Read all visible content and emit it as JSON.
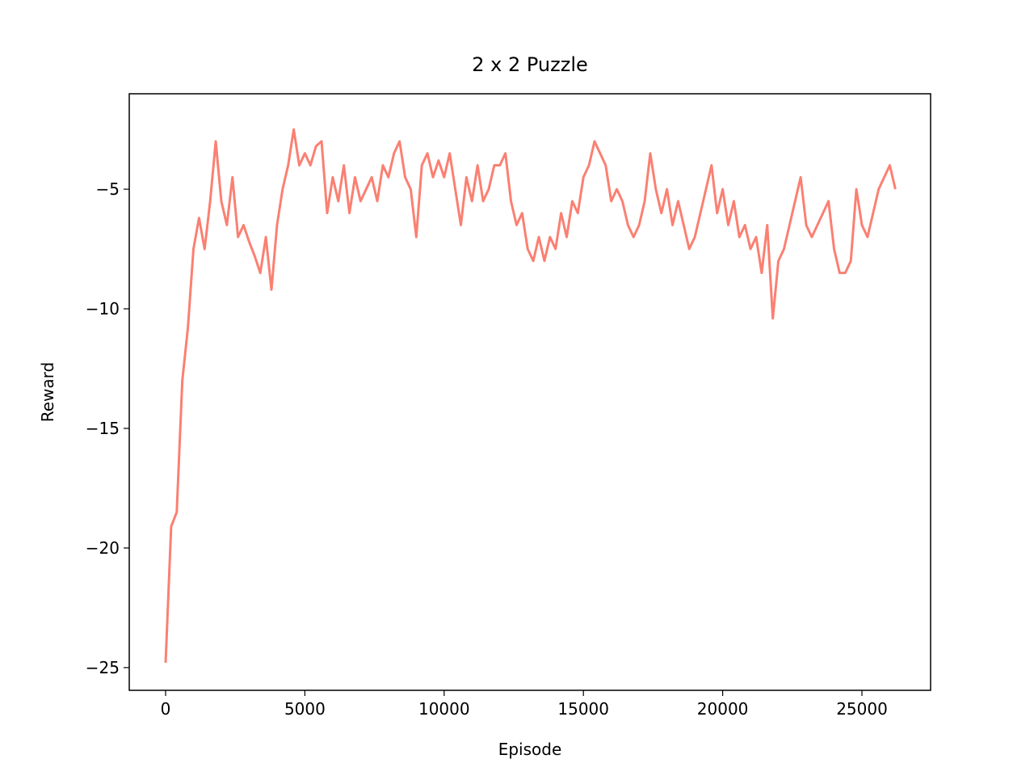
{
  "chart_data": {
    "type": "line",
    "title": "2 x 2 Puzzle",
    "x_label": "Episode",
    "y_label": "Reward",
    "x": [
      0,
      200,
      400,
      600,
      800,
      1000,
      1200,
      1400,
      1600,
      1800,
      2000,
      2200,
      2400,
      2600,
      2800,
      3000,
      3200,
      3400,
      3600,
      3800,
      4000,
      4200,
      4400,
      4600,
      4800,
      5000,
      5200,
      5400,
      5600,
      5800,
      6000,
      6200,
      6400,
      6600,
      6800,
      7000,
      7200,
      7400,
      7600,
      7800,
      8000,
      8200,
      8400,
      8600,
      8800,
      9000,
      9200,
      9400,
      9600,
      9800,
      10000,
      10200,
      10400,
      10600,
      10800,
      11000,
      11200,
      11400,
      11600,
      11800,
      12000,
      12200,
      12400,
      12600,
      12800,
      13000,
      13200,
      13400,
      13600,
      13800,
      14000,
      14200,
      14400,
      14600,
      14800,
      15000,
      15200,
      15400,
      15600,
      15800,
      16000,
      16200,
      16400,
      16600,
      16800,
      17000,
      17200,
      17400,
      17600,
      17800,
      18000,
      18200,
      18400,
      18600,
      18800,
      19000,
      19200,
      19400,
      19600,
      19800,
      20000,
      20200,
      20400,
      20600,
      20800,
      21000,
      21200,
      21400,
      21600,
      21800,
      22000,
      22200,
      22400,
      22600,
      22800,
      23000,
      23200,
      23400,
      23600,
      23800,
      24000,
      24200,
      24400,
      24600,
      24800,
      25000,
      25200,
      25400,
      25600,
      25800,
      26000,
      26200
    ],
    "series": [
      {
        "name": "Reward",
        "color": "#fa8072",
        "values": [
          -24.8,
          -19.1,
          -18.5,
          -13,
          -10.8,
          -7.5,
          -6.2,
          -7.5,
          -5.5,
          -3,
          -5.5,
          -6.5,
          -4.5,
          -7,
          -6.5,
          -7.2,
          -7.8,
          -8.5,
          -7,
          -9.2,
          -6.5,
          -5,
          -4,
          -2.5,
          -4,
          -3.5,
          -4,
          -3.2,
          -3,
          -6,
          -4.5,
          -5.5,
          -4,
          -6,
          -4.5,
          -5.5,
          -5,
          -4.5,
          -5.5,
          -4,
          -4.5,
          -3.5,
          -3,
          -4.5,
          -5,
          -7,
          -4,
          -3.5,
          -4.5,
          -3.8,
          -4.5,
          -3.5,
          -5,
          -6.5,
          -4.5,
          -5.5,
          -4,
          -5.5,
          -5,
          -4,
          -4,
          -3.5,
          -5.5,
          -6.5,
          -6,
          -7.5,
          -8,
          -7,
          -8,
          -7,
          -7.5,
          -6,
          -7,
          -5.5,
          -6,
          -4.5,
          -4,
          -3,
          -3.5,
          -4,
          -5.5,
          -5,
          -5.5,
          -6.5,
          -7,
          -6.5,
          -5.5,
          -3.5,
          -5,
          -6,
          -5,
          -6.5,
          -5.5,
          -6.5,
          -7.5,
          -7,
          -6,
          -5,
          -4,
          -6,
          -5,
          -6.5,
          -5.5,
          -7,
          -6.5,
          -7.5,
          -7,
          -8.5,
          -6.5,
          -10.4,
          -8,
          -7.5,
          -6.5,
          -5.5,
          -4.5,
          -6.5,
          -7,
          -6.5,
          -6,
          -5.5,
          -7.5,
          -8.5,
          -8.5,
          -8,
          -5,
          -6.5,
          -7,
          -6,
          -5,
          -4.5,
          -4,
          -5
        ]
      }
    ],
    "xlim": [
      -1305,
      27465
    ],
    "ylim": [
      -25.95,
      -1.01
    ],
    "xticks": [
      0,
      5000,
      10000,
      15000,
      20000,
      25000
    ],
    "yticks": [
      {
        "value": -25,
        "label": "−25"
      },
      {
        "value": -20,
        "label": "−20"
      },
      {
        "value": -15,
        "label": "−15"
      },
      {
        "value": -10,
        "label": "−10"
      },
      {
        "value": -5,
        "label": "−5"
      }
    ]
  }
}
